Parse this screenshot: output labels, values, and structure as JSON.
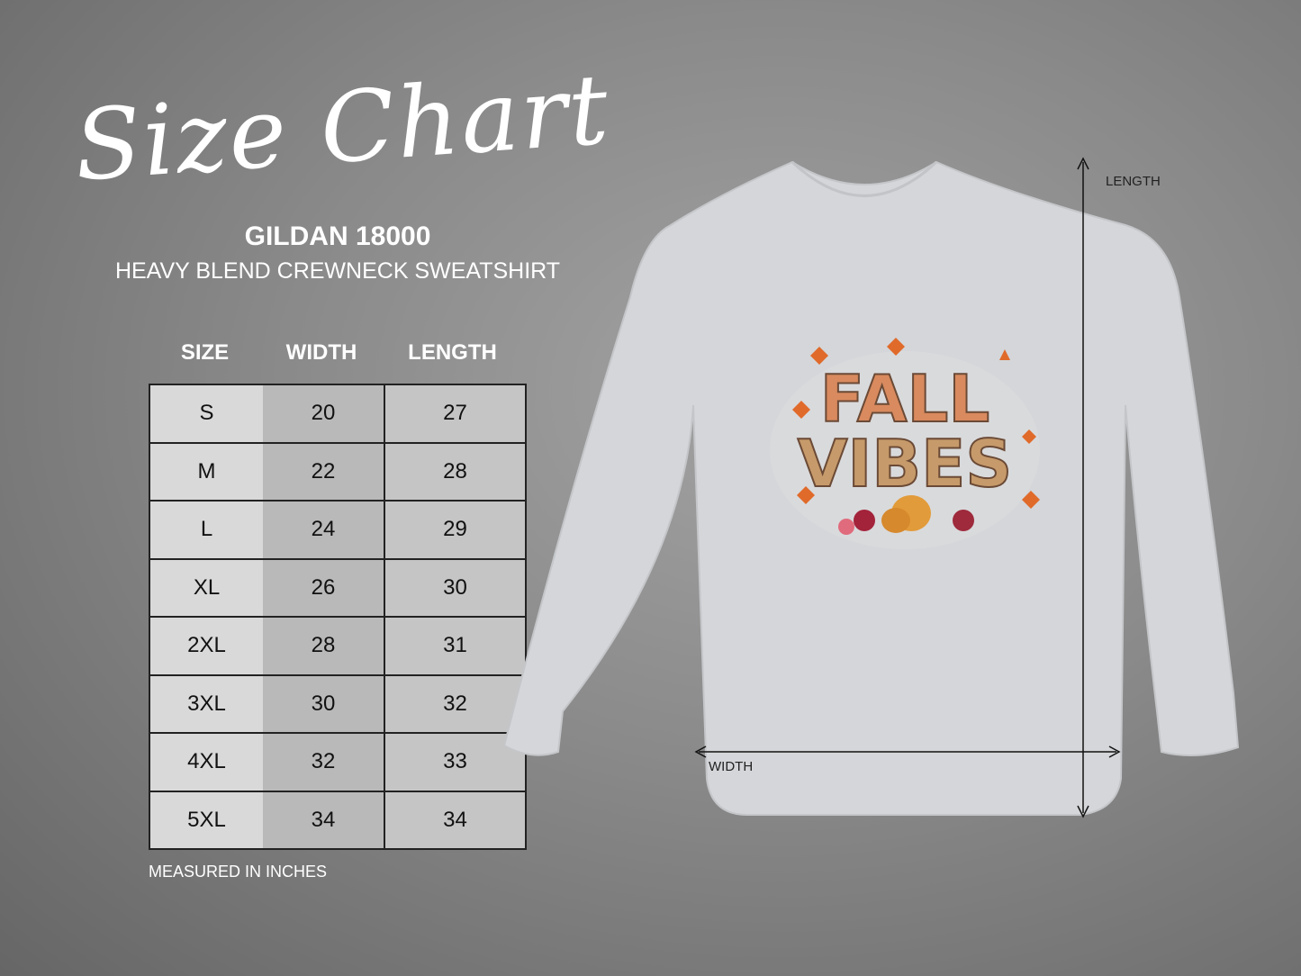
{
  "header": {
    "title": "Size Chart",
    "brand": "GILDAN 18000",
    "subtitle": "HEAVY BLEND CREWNECK SWEATSHIRT"
  },
  "table": {
    "columns": [
      "SIZE",
      "WIDTH",
      "LENGTH"
    ],
    "rows": [
      [
        "S",
        "20",
        "27"
      ],
      [
        "M",
        "22",
        "28"
      ],
      [
        "L",
        "24",
        "29"
      ],
      [
        "XL",
        "26",
        "30"
      ],
      [
        "2XL",
        "28",
        "31"
      ],
      [
        "3XL",
        "30",
        "32"
      ],
      [
        "4XL",
        "32",
        "33"
      ],
      [
        "5XL",
        "34",
        "34"
      ]
    ]
  },
  "note": "MEASURED IN INCHES",
  "diagram": {
    "length_label": "LENGTH",
    "width_label": "WIDTH",
    "shirt_color": "#d4d6d9",
    "print_text": "FALL VIBES"
  }
}
